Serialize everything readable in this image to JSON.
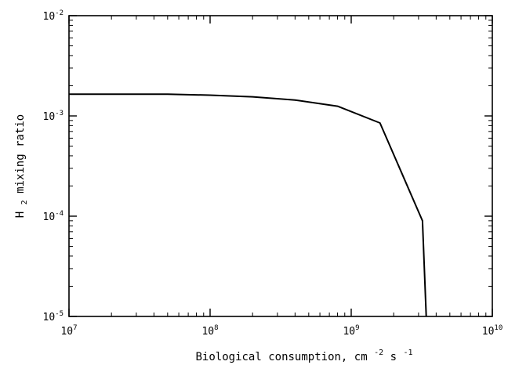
{
  "chart_data": {
    "type": "line",
    "title": "",
    "x_scale": "log",
    "y_scale": "log",
    "xlim": [
      10000000.0,
      10000000000.0
    ],
    "ylim": [
      1e-05,
      0.01
    ],
    "x_ticks": [
      {
        "base": "10",
        "exp": "7"
      },
      {
        "base": "10",
        "exp": "8"
      },
      {
        "base": "10",
        "exp": "9"
      },
      {
        "base": "10",
        "exp": "10"
      }
    ],
    "y_ticks": [
      {
        "base": "10",
        "exp": "-5"
      },
      {
        "base": "10",
        "exp": "-4"
      },
      {
        "base": "10",
        "exp": "-3"
      },
      {
        "base": "10",
        "exp": "-2"
      }
    ],
    "xlabel": {
      "text": "Biological consumption, cm",
      "sup1": "-2",
      "mid": " s",
      "sup2": "-1"
    },
    "ylabel": {
      "pre": "H",
      "sub": "2",
      "post": " mixing ratio"
    },
    "grid": false,
    "series": [
      {
        "x": [
          10000000.0,
          50000000.0,
          100000000.0,
          200000000.0,
          400000000.0,
          800000000.0,
          1600000000.0,
          3200000000.0,
          3400000000.0
        ],
        "y": [
          0.00165,
          0.00165,
          0.00161,
          0.00155,
          0.00144,
          0.00125,
          0.00085,
          9e-05,
          1e-05
        ]
      }
    ]
  }
}
